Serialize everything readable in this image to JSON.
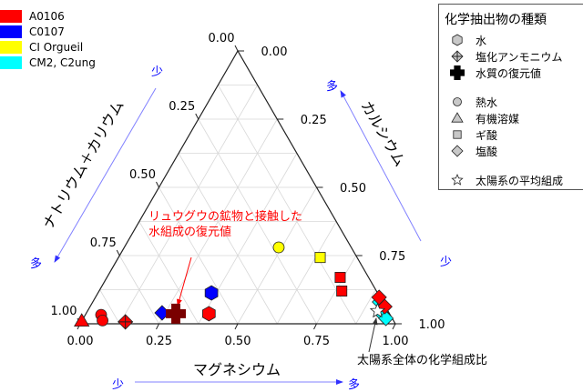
{
  "chart_data": {
    "type": "scatter",
    "subtype": "ternary",
    "axes": {
      "bottom": {
        "label": "マグネシウム",
        "ticks": [
          "0.00",
          "0.25",
          "0.50",
          "0.75",
          "1.00"
        ],
        "low": "少",
        "high": "多"
      },
      "right": {
        "label": "カルシウム",
        "ticks": [
          "1.00",
          "0.75",
          "0.50",
          "0.25",
          "0.00"
        ],
        "low": "少",
        "high": "多"
      },
      "left": {
        "label": "ナトリウム＋カリウム",
        "ticks": [
          "0.00",
          "0.25",
          "0.50",
          "0.75",
          "1.00"
        ],
        "low": "少",
        "high": "多"
      }
    },
    "samples": [
      {
        "name": "A0106",
        "color": "#ff0000"
      },
      {
        "name": "C0107",
        "color": "#0000ff"
      },
      {
        "name": "CI Orgueil",
        "color": "#ffff00"
      },
      {
        "name": "CM2, C2ung",
        "color": "#00ffff"
      }
    ],
    "legend_title": "化学抽出物の種類",
    "marker_legend": [
      {
        "marker": "hexagon",
        "label": "水"
      },
      {
        "marker": "diamond-cross",
        "label": "塩化アンモニウム"
      },
      {
        "marker": "plus",
        "label": "水質の復元値"
      },
      {
        "marker": "circle",
        "label": "熱水"
      },
      {
        "marker": "triangle",
        "label": "有機溶媒"
      },
      {
        "marker": "square",
        "label": "ギ酸"
      },
      {
        "marker": "diamond",
        "label": "塩酸"
      },
      {
        "marker": "star",
        "label": "太陽系の平均組成"
      }
    ],
    "points": [
      {
        "sample": 0,
        "marker": "triangle",
        "mg": 0.0,
        "ca": 0.01
      },
      {
        "sample": 0,
        "marker": "circle",
        "mg": 0.05,
        "ca": 0.033
      },
      {
        "sample": 0,
        "marker": "circle",
        "mg": 0.065,
        "ca": 0.012
      },
      {
        "sample": 0,
        "marker": "diamond-cross",
        "mg": 0.14,
        "ca": 0.007
      },
      {
        "sample": 1,
        "marker": "diamond",
        "mg": 0.24,
        "ca": 0.04
      },
      {
        "sample": 0,
        "marker": "plus",
        "mg": 0.285,
        "ca": 0.037,
        "color": "#7a0000"
      },
      {
        "sample": 1,
        "marker": "hexagon",
        "mg": 0.36,
        "ca": 0.113
      },
      {
        "sample": 0,
        "marker": "hexagon",
        "mg": 0.39,
        "ca": 0.037
      },
      {
        "sample": 2,
        "marker": "circle",
        "mg": 0.49,
        "ca": 0.28
      },
      {
        "sample": 2,
        "marker": "square",
        "mg": 0.64,
        "ca": 0.243
      },
      {
        "sample": 0,
        "marker": "square",
        "mg": 0.74,
        "ca": 0.17
      },
      {
        "sample": 0,
        "marker": "square",
        "mg": 0.77,
        "ca": 0.12
      },
      {
        "sample": 3,
        "marker": "diamond",
        "mg": 0.91,
        "ca": 0.08
      },
      {
        "sample": 3,
        "marker": "diamond",
        "mg": 0.94,
        "ca": 0.036
      },
      {
        "sample": 3,
        "marker": "diamond",
        "mg": 0.96,
        "ca": 0.02
      },
      {
        "sample": 0,
        "marker": "diamond",
        "mg": 0.9,
        "ca": 0.097
      },
      {
        "sample": 0,
        "marker": "diamond",
        "mg": 0.935,
        "ca": 0.063
      },
      {
        "sample": -1,
        "marker": "star",
        "mg": 0.92,
        "ca": 0.047
      }
    ],
    "annotations": {
      "ryugu_line1": "リュウグウの鉱物と接触した",
      "ryugu_line2": "水組成の復元値",
      "solar": "太陽系全体の化学組成比"
    }
  }
}
